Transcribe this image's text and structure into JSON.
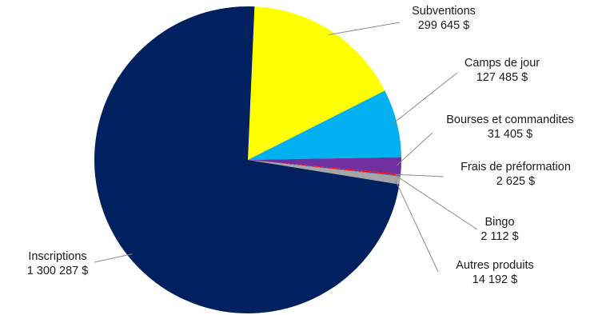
{
  "chart_data": {
    "type": "pie",
    "currency_suffix": "$",
    "slices": [
      {
        "name": "Subventions",
        "value": 299645,
        "value_label": "299 645 $",
        "color": "#ffff00"
      },
      {
        "name": "Camps de jour",
        "value": 127485,
        "value_label": "127 485 $",
        "color": "#00b0f0"
      },
      {
        "name": "Bourses et commandites",
        "value": 31405,
        "value_label": "31 405 $",
        "color": "#7030a0"
      },
      {
        "name": "Frais de préformation",
        "value": 2625,
        "value_label": "2 625 $",
        "color": "#ff0000"
      },
      {
        "name": "Bingo",
        "value": 2112,
        "value_label": "2 112 $",
        "color": "#4f81bd"
      },
      {
        "name": "Autres produits",
        "value": 14192,
        "value_label": "14 192 $",
        "color": "#a6a6a6"
      },
      {
        "name": "Inscriptions",
        "value": 1300287,
        "value_label": "1 300 287 $",
        "color": "#002060"
      }
    ]
  }
}
